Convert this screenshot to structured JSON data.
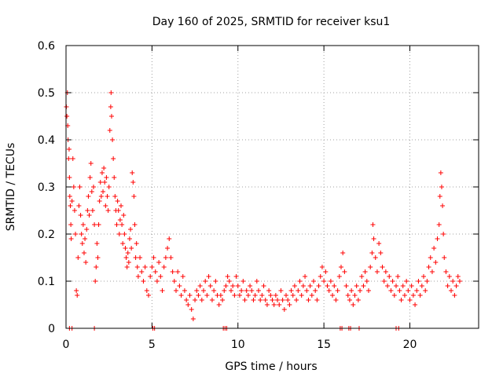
{
  "chart_data": {
    "type": "scatter",
    "title": "Day 160 of 2025, SRMTID for receiver ksu1",
    "xlabel": "GPS time / hours",
    "ylabel": "SRMTID / TECUs",
    "xlim": [
      0,
      24
    ],
    "ylim": [
      0,
      0.6
    ],
    "x_ticks": [
      0,
      5,
      10,
      15,
      20
    ],
    "x_tick_labels": [
      "0",
      "5",
      "10",
      "15",
      "20"
    ],
    "y_ticks": [
      0,
      0.1,
      0.2,
      0.3,
      0.4,
      0.5,
      0.6
    ],
    "y_tick_labels": [
      "0",
      "0.1",
      "0.2",
      "0.3",
      "0.4",
      "0.5",
      "0.6"
    ],
    "grid": true,
    "marker": "+",
    "series_color": "#ff0000",
    "series": [
      {
        "name": "SRMTID",
        "points": [
          [
            0.02,
            0.47
          ],
          [
            0.05,
            0.45
          ],
          [
            0.08,
            0.5
          ],
          [
            0.1,
            0.43
          ],
          [
            0.12,
            0.4
          ],
          [
            0.15,
            0.36
          ],
          [
            0.18,
            0.38
          ],
          [
            0.2,
            0.32
          ],
          [
            0.22,
            0.28
          ],
          [
            0.25,
            0.26
          ],
          [
            0.28,
            0.22
          ],
          [
            0.3,
            0.19
          ],
          [
            0.35,
            0.27
          ],
          [
            0.4,
            0.36
          ],
          [
            0.45,
            0.3
          ],
          [
            0.5,
            0.25
          ],
          [
            0.55,
            0.2
          ],
          [
            0.6,
            0.08
          ],
          [
            0.65,
            0.07
          ],
          [
            0.7,
            0.15
          ],
          [
            0.75,
            0.26
          ],
          [
            0.8,
            0.3
          ],
          [
            0.85,
            0.24
          ],
          [
            0.9,
            0.2
          ],
          [
            0.95,
            0.18
          ],
          [
            1.0,
            0.22
          ],
          [
            1.05,
            0.16
          ],
          [
            1.1,
            0.19
          ],
          [
            1.15,
            0.14
          ],
          [
            1.2,
            0.21
          ],
          [
            1.25,
            0.25
          ],
          [
            1.3,
            0.28
          ],
          [
            1.35,
            0.24
          ],
          [
            1.4,
            0.32
          ],
          [
            1.45,
            0.35
          ],
          [
            1.5,
            0.29
          ],
          [
            1.55,
            0.25
          ],
          [
            1.6,
            0.3
          ],
          [
            1.65,
            0.22
          ],
          [
            1.7,
            0.1
          ],
          [
            1.75,
            0.13
          ],
          [
            1.8,
            0.18
          ],
          [
            1.85,
            0.15
          ],
          [
            1.9,
            0.22
          ],
          [
            1.95,
            0.27
          ],
          [
            2.0,
            0.31
          ],
          [
            2.05,
            0.28
          ],
          [
            2.1,
            0.33
          ],
          [
            2.15,
            0.29
          ],
          [
            2.2,
            0.34
          ],
          [
            2.25,
            0.31
          ],
          [
            2.3,
            0.26
          ],
          [
            2.35,
            0.32
          ],
          [
            2.4,
            0.28
          ],
          [
            2.45,
            0.25
          ],
          [
            2.5,
            0.3
          ],
          [
            2.55,
            0.42
          ],
          [
            2.6,
            0.47
          ],
          [
            2.62,
            0.5
          ],
          [
            2.65,
            0.45
          ],
          [
            2.7,
            0.4
          ],
          [
            2.75,
            0.36
          ],
          [
            2.8,
            0.32
          ],
          [
            2.85,
            0.28
          ],
          [
            2.9,
            0.25
          ],
          [
            2.95,
            0.22
          ],
          [
            3.0,
            0.27
          ],
          [
            3.05,
            0.25
          ],
          [
            3.1,
            0.2
          ],
          [
            3.15,
            0.23
          ],
          [
            3.2,
            0.26
          ],
          [
            3.25,
            0.22
          ],
          [
            3.3,
            0.18
          ],
          [
            3.35,
            0.24
          ],
          [
            3.4,
            0.2
          ],
          [
            3.45,
            0.17
          ],
          [
            3.5,
            0.15
          ],
          [
            3.55,
            0.13
          ],
          [
            3.6,
            0.16
          ],
          [
            3.65,
            0.14
          ],
          [
            3.7,
            0.19
          ],
          [
            3.75,
            0.21
          ],
          [
            3.8,
            0.17
          ],
          [
            3.85,
            0.33
          ],
          [
            3.9,
            0.31
          ],
          [
            3.95,
            0.28
          ],
          [
            4.0,
            0.22
          ],
          [
            4.05,
            0.15
          ],
          [
            4.1,
            0.18
          ],
          [
            4.15,
            0.13
          ],
          [
            4.2,
            0.11
          ],
          [
            4.3,
            0.15
          ],
          [
            4.4,
            0.12
          ],
          [
            4.5,
            0.1
          ],
          [
            4.6,
            0.13
          ],
          [
            4.7,
            0.08
          ],
          [
            4.8,
            0.07
          ],
          [
            4.9,
            0.11
          ],
          [
            5.0,
            0.13
          ],
          [
            5.1,
            0.15
          ],
          [
            5.2,
            0.12
          ],
          [
            5.3,
            0.1
          ],
          [
            5.4,
            0.14
          ],
          [
            5.5,
            0.11
          ],
          [
            5.6,
            0.08
          ],
          [
            5.7,
            0.13
          ],
          [
            5.8,
            0.15
          ],
          [
            5.9,
            0.17
          ],
          [
            6.0,
            0.19
          ],
          [
            6.1,
            0.15
          ],
          [
            6.2,
            0.12
          ],
          [
            6.3,
            0.1
          ],
          [
            6.4,
            0.08
          ],
          [
            6.5,
            0.12
          ],
          [
            6.6,
            0.09
          ],
          [
            6.7,
            0.07
          ],
          [
            6.8,
            0.11
          ],
          [
            6.9,
            0.08
          ],
          [
            7.0,
            0.06
          ],
          [
            7.1,
            0.05
          ],
          [
            7.2,
            0.07
          ],
          [
            7.3,
            0.04
          ],
          [
            7.4,
            0.02
          ],
          [
            7.5,
            0.06
          ],
          [
            7.6,
            0.08
          ],
          [
            7.7,
            0.07
          ],
          [
            7.8,
            0.09
          ],
          [
            7.9,
            0.06
          ],
          [
            8.0,
            0.08
          ],
          [
            8.1,
            0.1
          ],
          [
            8.2,
            0.07
          ],
          [
            8.3,
            0.11
          ],
          [
            8.4,
            0.09
          ],
          [
            8.5,
            0.06
          ],
          [
            8.6,
            0.08
          ],
          [
            8.7,
            0.1
          ],
          [
            8.8,
            0.07
          ],
          [
            8.9,
            0.05
          ],
          [
            9.0,
            0.07
          ],
          [
            9.1,
            0.06
          ],
          [
            9.2,
            0.08
          ],
          [
            9.3,
            0.09
          ],
          [
            9.4,
            0.11
          ],
          [
            9.5,
            0.1
          ],
          [
            9.6,
            0.08
          ],
          [
            9.7,
            0.09
          ],
          [
            9.8,
            0.07
          ],
          [
            9.9,
            0.11
          ],
          [
            10.0,
            0.09
          ],
          [
            10.1,
            0.07
          ],
          [
            10.2,
            0.08
          ],
          [
            10.3,
            0.1
          ],
          [
            10.4,
            0.06
          ],
          [
            10.5,
            0.08
          ],
          [
            10.6,
            0.07
          ],
          [
            10.7,
            0.09
          ],
          [
            10.8,
            0.08
          ],
          [
            10.9,
            0.06
          ],
          [
            11.0,
            0.07
          ],
          [
            11.1,
            0.1
          ],
          [
            11.2,
            0.08
          ],
          [
            11.3,
            0.06
          ],
          [
            11.4,
            0.07
          ],
          [
            11.5,
            0.09
          ],
          [
            11.6,
            0.06
          ],
          [
            11.7,
            0.05
          ],
          [
            11.8,
            0.08
          ],
          [
            11.9,
            0.07
          ],
          [
            12.0,
            0.06
          ],
          [
            12.1,
            0.05
          ],
          [
            12.2,
            0.07
          ],
          [
            12.3,
            0.06
          ],
          [
            12.4,
            0.05
          ],
          [
            12.5,
            0.08
          ],
          [
            12.6,
            0.06
          ],
          [
            12.7,
            0.04
          ],
          [
            12.8,
            0.07
          ],
          [
            12.9,
            0.06
          ],
          [
            13.0,
            0.05
          ],
          [
            13.1,
            0.08
          ],
          [
            13.2,
            0.07
          ],
          [
            13.3,
            0.09
          ],
          [
            13.4,
            0.06
          ],
          [
            13.5,
            0.08
          ],
          [
            13.6,
            0.1
          ],
          [
            13.7,
            0.07
          ],
          [
            13.8,
            0.09
          ],
          [
            13.9,
            0.11
          ],
          [
            14.0,
            0.08
          ],
          [
            14.1,
            0.06
          ],
          [
            14.2,
            0.09
          ],
          [
            14.3,
            0.07
          ],
          [
            14.4,
            0.1
          ],
          [
            14.5,
            0.08
          ],
          [
            14.6,
            0.06
          ],
          [
            14.7,
            0.09
          ],
          [
            14.8,
            0.11
          ],
          [
            14.9,
            0.13
          ],
          [
            15.0,
            0.1
          ],
          [
            15.1,
            0.12
          ],
          [
            15.2,
            0.09
          ],
          [
            15.3,
            0.08
          ],
          [
            15.4,
            0.1
          ],
          [
            15.5,
            0.07
          ],
          [
            15.6,
            0.09
          ],
          [
            15.7,
            0.06
          ],
          [
            15.8,
            0.08
          ],
          [
            15.9,
            0.11
          ],
          [
            16.0,
            0.13
          ],
          [
            16.1,
            0.16
          ],
          [
            16.2,
            0.12
          ],
          [
            16.3,
            0.09
          ],
          [
            16.4,
            0.07
          ],
          [
            16.5,
            0.06
          ],
          [
            16.6,
            0.08
          ],
          [
            16.7,
            0.05
          ],
          [
            16.8,
            0.07
          ],
          [
            16.9,
            0.09
          ],
          [
            17.0,
            0.06
          ],
          [
            17.1,
            0.08
          ],
          [
            17.2,
            0.11
          ],
          [
            17.3,
            0.09
          ],
          [
            17.4,
            0.12
          ],
          [
            17.5,
            0.1
          ],
          [
            17.6,
            0.08
          ],
          [
            17.7,
            0.13
          ],
          [
            17.8,
            0.16
          ],
          [
            17.85,
            0.22
          ],
          [
            17.9,
            0.19
          ],
          [
            18.0,
            0.15
          ],
          [
            18.1,
            0.12
          ],
          [
            18.2,
            0.18
          ],
          [
            18.3,
            0.16
          ],
          [
            18.4,
            0.13
          ],
          [
            18.5,
            0.1
          ],
          [
            18.6,
            0.12
          ],
          [
            18.7,
            0.09
          ],
          [
            18.8,
            0.11
          ],
          [
            18.9,
            0.08
          ],
          [
            19.0,
            0.1
          ],
          [
            19.1,
            0.07
          ],
          [
            19.2,
            0.09
          ],
          [
            19.3,
            0.11
          ],
          [
            19.4,
            0.08
          ],
          [
            19.5,
            0.06
          ],
          [
            19.6,
            0.09
          ],
          [
            19.7,
            0.07
          ],
          [
            19.8,
            0.1
          ],
          [
            19.9,
            0.08
          ],
          [
            20.0,
            0.06
          ],
          [
            20.1,
            0.09
          ],
          [
            20.2,
            0.07
          ],
          [
            20.3,
            0.05
          ],
          [
            20.4,
            0.08
          ],
          [
            20.5,
            0.1
          ],
          [
            20.6,
            0.07
          ],
          [
            20.7,
            0.09
          ],
          [
            20.8,
            0.11
          ],
          [
            20.9,
            0.08
          ],
          [
            21.0,
            0.1
          ],
          [
            21.1,
            0.13
          ],
          [
            21.2,
            0.15
          ],
          [
            21.3,
            0.12
          ],
          [
            21.4,
            0.17
          ],
          [
            21.5,
            0.14
          ],
          [
            21.6,
            0.19
          ],
          [
            21.7,
            0.22
          ],
          [
            21.75,
            0.28
          ],
          [
            21.8,
            0.33
          ],
          [
            21.85,
            0.3
          ],
          [
            21.9,
            0.26
          ],
          [
            21.95,
            0.2
          ],
          [
            22.0,
            0.15
          ],
          [
            22.1,
            0.12
          ],
          [
            22.2,
            0.09
          ],
          [
            22.3,
            0.11
          ],
          [
            22.4,
            0.08
          ],
          [
            22.5,
            0.1
          ],
          [
            22.6,
            0.07
          ],
          [
            22.7,
            0.09
          ],
          [
            22.8,
            0.11
          ],
          [
            22.9,
            0.1
          ],
          [
            0.2,
            0
          ],
          [
            0.35,
            0
          ],
          [
            1.65,
            0
          ],
          [
            5.05,
            0
          ],
          [
            5.15,
            0
          ],
          [
            9.15,
            0
          ],
          [
            9.25,
            0
          ],
          [
            9.35,
            0
          ],
          [
            15.95,
            0
          ],
          [
            16.05,
            0
          ],
          [
            16.45,
            0
          ],
          [
            16.55,
            0
          ],
          [
            17.05,
            0
          ],
          [
            19.2,
            0
          ],
          [
            19.35,
            0
          ]
        ]
      }
    ]
  }
}
